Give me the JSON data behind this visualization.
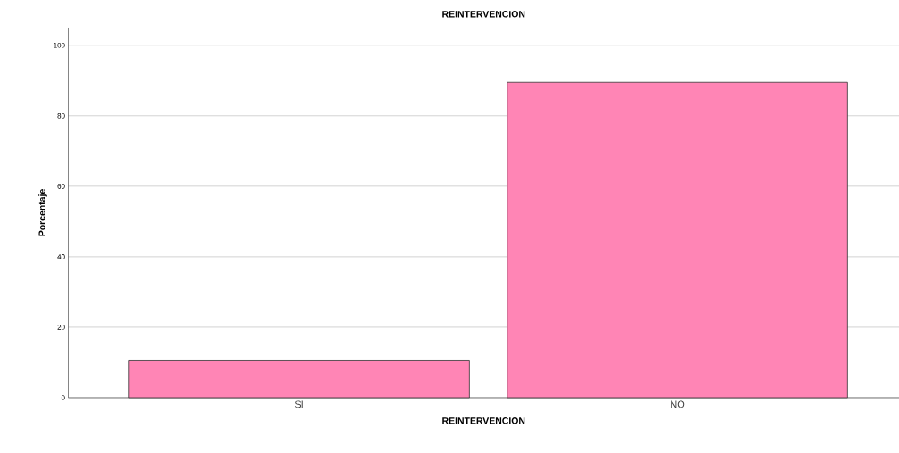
{
  "chart_data": {
    "type": "bar",
    "title": "REINTERVENCION",
    "xlabel": "REINTERVENCION",
    "ylabel": "Porcentaje",
    "categories": [
      "SI",
      "NO"
    ],
    "values": [
      10.5,
      89.5
    ],
    "color": "#ff85b5",
    "ylim": [
      0,
      105
    ],
    "yticks": [
      0,
      20,
      40,
      60,
      80,
      100
    ],
    "grid": "y"
  }
}
